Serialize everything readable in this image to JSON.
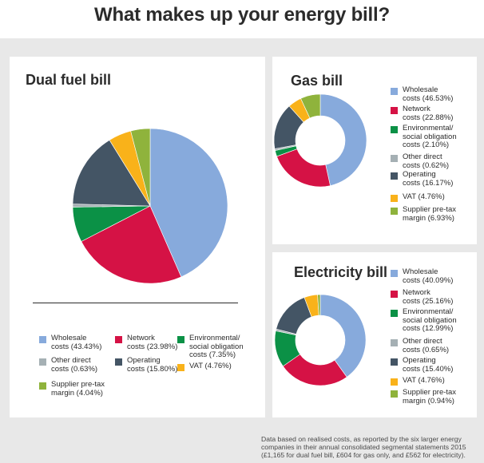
{
  "page_title": "What makes up your energy bill?",
  "footnote": "Data based on realised costs, as reported by the six larger energy\ncompanies in their annual consolidated segmental statements 2015\n(£1,165 for dual fuel bill, £604 for gas only, and £562 for electricity).",
  "colors": {
    "wholesale": "#87aadc",
    "network": "#d51245",
    "environmental": "#0b9146",
    "other_direct": "#a5b0b4",
    "operating": "#445565",
    "vat": "#f9b21a",
    "supplier_margin": "#8fb33c"
  },
  "chart_data": [
    {
      "type": "pie",
      "title": "Dual fuel bill",
      "slices": [
        {
          "key": "wholesale",
          "label": "Wholesale\ncosts (43.43%)",
          "value": 43.43
        },
        {
          "key": "network",
          "label": "Network\ncosts (23.98%)",
          "value": 23.98
        },
        {
          "key": "environmental",
          "label": "Environmental/\nsocial obligation\ncosts (7.35%)",
          "value": 7.35
        },
        {
          "key": "other_direct",
          "label": "Other direct\ncosts (0.63%)",
          "value": 0.63
        },
        {
          "key": "operating",
          "label": "Operating\ncosts (15.80%)",
          "value": 15.8
        },
        {
          "key": "vat",
          "label": "VAT (4.76%)",
          "value": 4.76
        },
        {
          "key": "supplier_margin",
          "label": "Supplier pre-tax\nmargin (4.04%)",
          "value": 4.04
        }
      ]
    },
    {
      "type": "pie",
      "title": "Gas bill",
      "slices": [
        {
          "key": "wholesale",
          "label": "Wholesale\ncosts (46.53%)",
          "value": 46.53
        },
        {
          "key": "network",
          "label": "Network\ncosts (22.88%)",
          "value": 22.88
        },
        {
          "key": "environmental",
          "label": "Environmental/\nsocial obligation\ncosts (2.10%)",
          "value": 2.1
        },
        {
          "key": "other_direct",
          "label": "Other direct\ncosts (0.62%)",
          "value": 0.62
        },
        {
          "key": "operating",
          "label": "Operating\ncosts (16.17%)",
          "value": 16.17
        },
        {
          "key": "vat",
          "label": "VAT (4.76%)",
          "value": 4.76
        },
        {
          "key": "supplier_margin",
          "label": "Supplier pre-tax\nmargin (6.93%)",
          "value": 6.93
        }
      ]
    },
    {
      "type": "pie",
      "title": "Electricity bill",
      "slices": [
        {
          "key": "wholesale",
          "label": "Wholesale\ncosts (40.09%)",
          "value": 40.09
        },
        {
          "key": "network",
          "label": "Network\ncosts (25.16%)",
          "value": 25.16
        },
        {
          "key": "environmental",
          "label": "Environmental/\nsocial obligation\ncosts (12.99%)",
          "value": 12.99
        },
        {
          "key": "other_direct",
          "label": "Other direct\ncosts (0.65%)",
          "value": 0.65
        },
        {
          "key": "operating",
          "label": "Operating\ncosts (15.40%)",
          "value": 15.4
        },
        {
          "key": "vat",
          "label": "VAT (4.76%)",
          "value": 4.76
        },
        {
          "key": "supplier_margin",
          "label": "Supplier pre-tax\nmargin (0.94%)",
          "value": 0.94
        }
      ]
    }
  ]
}
